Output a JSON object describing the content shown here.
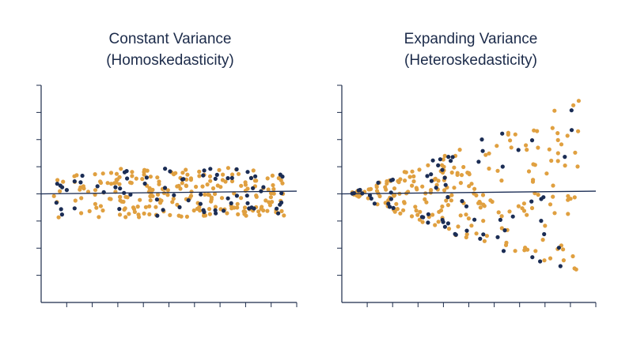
{
  "colors": {
    "navy": "#1b2d55",
    "gold": "#e0a040",
    "axis": "#1c2b4a",
    "title": "#1c2b4a"
  },
  "chart_data": [
    {
      "type": "scatter",
      "title_lines": [
        "Constant Variance",
        "(Homoskedasticity)"
      ],
      "xlabel": "",
      "ylabel": "",
      "xlim": [
        0,
        10
      ],
      "ylim": [
        -4,
        4
      ],
      "tick_labels_shown": false,
      "grid": false,
      "regression_line": {
        "intercept": 0.0,
        "slope": 0.01
      },
      "pattern": "uniform spread, constant variance around fitted line",
      "series": [
        {
          "color": "gold",
          "spread": 0.9,
          "x_range": [
            0.5,
            9.5
          ],
          "n": 230
        },
        {
          "color": "navy",
          "spread": 0.9,
          "x_range": [
            0.5,
            9.5
          ],
          "n": 70
        }
      ]
    },
    {
      "type": "scatter",
      "title_lines": [
        "Expanding Variance",
        "(Heteroskedasticity)"
      ],
      "xlabel": "",
      "ylabel": "",
      "xlim": [
        0,
        10
      ],
      "ylim": [
        -4,
        4
      ],
      "tick_labels_shown": false,
      "grid": false,
      "regression_line": {
        "intercept": 0.0,
        "slope": 0.01
      },
      "pattern": "fan-shaped spread, variance grows with x",
      "series": [
        {
          "color": "gold",
          "spread_start": 0.05,
          "spread_end": 3.4,
          "x_range": [
            0.4,
            9.4
          ],
          "n": 230
        },
        {
          "color": "navy",
          "spread_start": 0.05,
          "spread_end": 3.4,
          "x_range": [
            0.4,
            9.4
          ],
          "n": 70
        }
      ]
    }
  ]
}
